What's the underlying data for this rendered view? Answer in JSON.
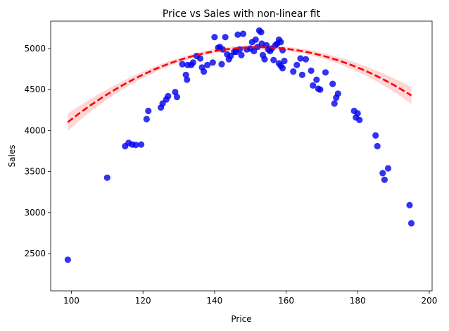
{
  "chart_data": {
    "type": "scatter",
    "title": "Price vs Sales with non-linear fit",
    "xlabel": "Price",
    "ylabel": "Sales",
    "xlim": [
      94.2,
      200.8
    ],
    "ylim": [
      2045,
      5335
    ],
    "xticks": [
      100,
      120,
      140,
      160,
      180,
      200
    ],
    "yticks": [
      2500,
      3000,
      3500,
      4000,
      4500,
      5000
    ],
    "grid": false,
    "legend": "none",
    "colors": {
      "points": "#0000ee",
      "fit_line": "#ff0000",
      "confidence_band": "#ffcccc"
    },
    "points": [
      [
        99,
        2425
      ],
      [
        110,
        3425
      ],
      [
        115,
        3810
      ],
      [
        116,
        3850
      ],
      [
        117,
        3830
      ],
      [
        118,
        3825
      ],
      [
        119.5,
        3830
      ],
      [
        121,
        4140
      ],
      [
        121.5,
        4240
      ],
      [
        125,
        4280
      ],
      [
        125.5,
        4330
      ],
      [
        126.5,
        4380
      ],
      [
        127,
        4420
      ],
      [
        129,
        4470
      ],
      [
        129.5,
        4410
      ],
      [
        131,
        4810
      ],
      [
        132,
        4680
      ],
      [
        132.3,
        4620
      ],
      [
        132.5,
        4800
      ],
      [
        133.5,
        4800
      ],
      [
        134,
        4830
      ],
      [
        135,
        4910
      ],
      [
        136,
        4880
      ],
      [
        136.5,
        4770
      ],
      [
        137,
        4720
      ],
      [
        138,
        4800
      ],
      [
        139.5,
        4830
      ],
      [
        140,
        5140
      ],
      [
        141,
        5010
      ],
      [
        141.5,
        5020
      ],
      [
        142,
        4810
      ],
      [
        142.3,
        4990
      ],
      [
        143,
        5140
      ],
      [
        143.5,
        4930
      ],
      [
        144,
        4870
      ],
      [
        144.5,
        4910
      ],
      [
        145.5,
        4960
      ],
      [
        146,
        4960
      ],
      [
        146.5,
        5170
      ],
      [
        147,
        4990
      ],
      [
        147.5,
        4920
      ],
      [
        148,
        5180
      ],
      [
        149,
        4990
      ],
      [
        150,
        5000
      ],
      [
        150.5,
        5080
      ],
      [
        151,
        4970
      ],
      [
        151.5,
        5110
      ],
      [
        152,
        5020
      ],
      [
        152.5,
        5220
      ],
      [
        153,
        5200
      ],
      [
        153.2,
        5060
      ],
      [
        153.5,
        4920
      ],
      [
        154,
        4870
      ],
      [
        154.5,
        5040
      ],
      [
        155,
        4990
      ],
      [
        155.5,
        4970
      ],
      [
        156,
        5000
      ],
      [
        156.5,
        4860
      ],
      [
        157,
        5040
      ],
      [
        157.5,
        5060
      ],
      [
        158,
        5110
      ],
      [
        158,
        4820
      ],
      [
        158.5,
        4790
      ],
      [
        158.5,
        5080
      ],
      [
        159,
        4980
      ],
      [
        159,
        4760
      ],
      [
        159.5,
        4850
      ],
      [
        162,
        4720
      ],
      [
        163,
        4800
      ],
      [
        164,
        4880
      ],
      [
        164.5,
        4680
      ],
      [
        165.5,
        4870
      ],
      [
        167,
        4730
      ],
      [
        167.5,
        4550
      ],
      [
        168.5,
        4620
      ],
      [
        169,
        4510
      ],
      [
        169.5,
        4500
      ],
      [
        171,
        4710
      ],
      [
        173,
        4570
      ],
      [
        173.5,
        4330
      ],
      [
        174,
        4400
      ],
      [
        174.5,
        4450
      ],
      [
        179,
        4240
      ],
      [
        179.5,
        4160
      ],
      [
        180,
        4210
      ],
      [
        180.5,
        4130
      ],
      [
        185,
        3940
      ],
      [
        185.5,
        3810
      ],
      [
        187,
        3480
      ],
      [
        187.5,
        3400
      ],
      [
        188.5,
        3540
      ],
      [
        194.5,
        3090
      ],
      [
        195,
        2870
      ]
    ],
    "fit": {
      "style": "dashed",
      "x_range": [
        99,
        195
      ],
      "a": -0.3222,
      "b": 98.11,
      "c": -2451.7
    }
  }
}
